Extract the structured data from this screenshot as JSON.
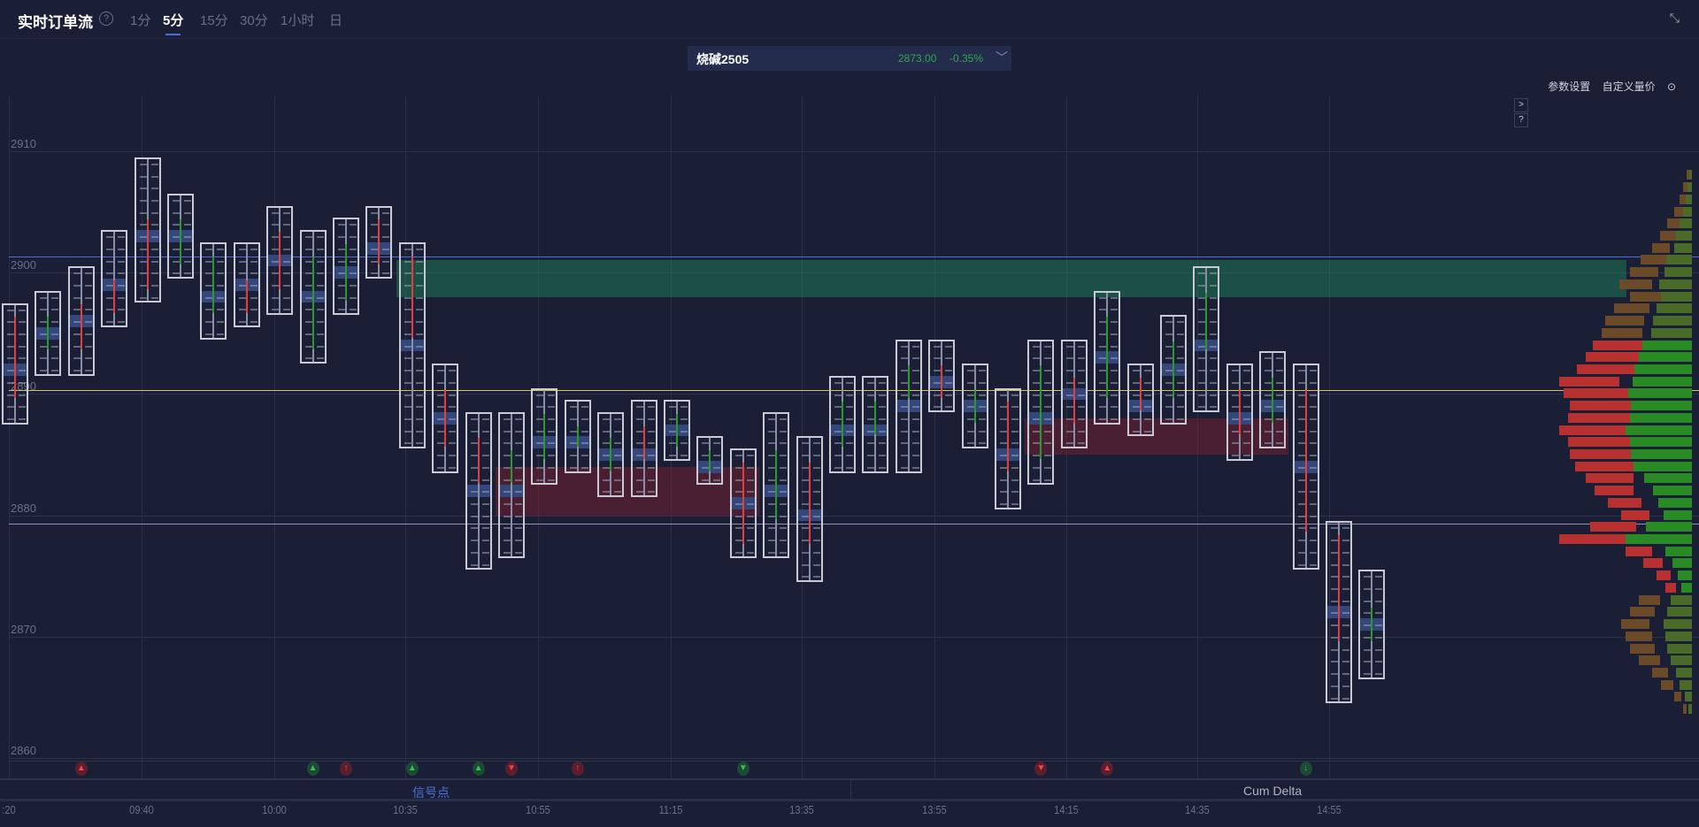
{
  "header": {
    "title": "实时订单流",
    "help_icon": "question-circle-icon",
    "timeframes": [
      "1分",
      "5分",
      "15分",
      "30分",
      "1小时",
      "日"
    ],
    "active_timeframe": "5分"
  },
  "ticker": {
    "name": "烧碱2505",
    "price": "2873.00",
    "change": "-0.35%",
    "color": "#2fa84a"
  },
  "toolbar": {
    "settings": "参数设置",
    "custom_price": "自定义量价",
    "expand": ">",
    "help": "?"
  },
  "bottom_tabs": {
    "signals": "信号点",
    "cum_delta": "Cum Delta"
  },
  "colors": {
    "up": "#2a9a2e",
    "down": "#e04040",
    "poc": "#34477a",
    "line_blue": "#4a6fd6",
    "line_yellow": "#d8c06a",
    "line_purple": "#9a8fb8"
  },
  "chart_data": {
    "type": "footprint",
    "price_ticks": [
      "2910",
      "2900",
      "2890",
      "2880",
      "2870",
      "2860"
    ],
    "ylim": [
      2857,
      2913
    ],
    "time_labels": [
      ":20",
      "09:40",
      "10:00",
      "10:35",
      "10:55",
      "11:15",
      "13:35",
      "13:55",
      "14:15",
      "14:35",
      "14:55"
    ],
    "candles": [
      {
        "h": 2897,
        "l": 2888,
        "o": 2896,
        "c": 2890
      },
      {
        "h": 2898,
        "l": 2892,
        "o": 2894,
        "c": 2896
      },
      {
        "h": 2900,
        "l": 2892,
        "o": 2897,
        "c": 2894
      },
      {
        "h": 2903,
        "l": 2896,
        "o": 2899,
        "c": 2897
      },
      {
        "h": 2909,
        "l": 2898,
        "o": 2904,
        "c": 2899
      },
      {
        "h": 2906,
        "l": 2900,
        "o": 2901,
        "c": 2904
      },
      {
        "h": 2902,
        "l": 2895,
        "o": 2897,
        "c": 2901
      },
      {
        "h": 2902,
        "l": 2896,
        "o": 2899,
        "c": 2897
      },
      {
        "h": 2905,
        "l": 2897,
        "o": 2903,
        "c": 2899
      },
      {
        "h": 2903,
        "l": 2893,
        "o": 2894,
        "c": 2901
      },
      {
        "h": 2904,
        "l": 2897,
        "o": 2898,
        "c": 2902
      },
      {
        "h": 2905,
        "l": 2900,
        "o": 2904,
        "c": 2901
      },
      {
        "h": 2902,
        "l": 2886,
        "o": 2901,
        "c": 2895
      },
      {
        "h": 2892,
        "l": 2884,
        "o": 2890,
        "c": 2886
      },
      {
        "h": 2888,
        "l": 2876,
        "o": 2886,
        "c": 2883
      },
      {
        "h": 2888,
        "l": 2877,
        "o": 2883,
        "c": 2885
      },
      {
        "h": 2890,
        "l": 2883,
        "o": 2885,
        "c": 2888
      },
      {
        "h": 2889,
        "l": 2884,
        "o": 2886,
        "c": 2887
      },
      {
        "h": 2888,
        "l": 2882,
        "o": 2884,
        "c": 2886
      },
      {
        "h": 2889,
        "l": 2882,
        "o": 2887,
        "c": 2885
      },
      {
        "h": 2889,
        "l": 2885,
        "o": 2886,
        "c": 2888
      },
      {
        "h": 2886,
        "l": 2883,
        "o": 2884,
        "c": 2885
      },
      {
        "h": 2885,
        "l": 2877,
        "o": 2884,
        "c": 2878
      },
      {
        "h": 2888,
        "l": 2877,
        "o": 2880,
        "c": 2885
      },
      {
        "h": 2886,
        "l": 2875,
        "o": 2884,
        "c": 2878
      },
      {
        "h": 2891,
        "l": 2884,
        "o": 2886,
        "c": 2889
      },
      {
        "h": 2891,
        "l": 2884,
        "o": 2887,
        "c": 2889
      },
      {
        "h": 2894,
        "l": 2884,
        "o": 2890,
        "c": 2892
      },
      {
        "h": 2894,
        "l": 2889,
        "o": 2892,
        "c": 2890
      },
      {
        "h": 2892,
        "l": 2886,
        "o": 2888,
        "c": 2890
      },
      {
        "h": 2890,
        "l": 2881,
        "o": 2889,
        "c": 2884
      },
      {
        "h": 2894,
        "l": 2883,
        "o": 2885,
        "c": 2892
      },
      {
        "h": 2894,
        "l": 2886,
        "o": 2891,
        "c": 2888
      },
      {
        "h": 2898,
        "l": 2888,
        "o": 2890,
        "c": 2896
      },
      {
        "h": 2892,
        "l": 2887,
        "o": 2891,
        "c": 2889
      },
      {
        "h": 2896,
        "l": 2888,
        "o": 2890,
        "c": 2894
      },
      {
        "h": 2900,
        "l": 2889,
        "o": 2894,
        "c": 2898
      },
      {
        "h": 2892,
        "l": 2885,
        "o": 2890,
        "c": 2887
      },
      {
        "h": 2893,
        "l": 2886,
        "o": 2888,
        "c": 2891
      },
      {
        "h": 2892,
        "l": 2876,
        "o": 2890,
        "c": 2879
      },
      {
        "h": 2879,
        "l": 2865,
        "o": 2878,
        "c": 2870
      },
      {
        "h": 2875,
        "l": 2867,
        "o": 2870,
        "c": 2872
      }
    ],
    "lines": [
      {
        "price": 2901.3,
        "color": "#4a6fd6"
      },
      {
        "price": 2890.3,
        "color": "#d8c06a"
      },
      {
        "price": 2879.3,
        "color": "#9a8fb8"
      }
    ],
    "zones": [
      {
        "from": 2898,
        "to": 2901,
        "color": "green",
        "start": 12
      },
      {
        "from": 2880,
        "to": 2884,
        "color": "red",
        "start": 15,
        "end": 22
      },
      {
        "from": 2885,
        "to": 2888,
        "color": "red",
        "start": 31,
        "end": 38
      }
    ],
    "profile": {
      "prices_from": 2908,
      "totals": [
        6,
        10,
        14,
        20,
        28,
        36,
        45,
        58,
        70,
        82,
        70,
        88,
        98,
        102,
        112,
        120,
        130,
        150,
        145,
        138,
        140,
        150,
        140,
        138,
        132,
        120,
        110,
        95,
        80,
        115,
        150,
        75,
        55,
        40,
        30,
        60,
        70,
        80,
        75,
        70,
        60,
        45,
        35,
        20,
        10
      ],
      "sell_share": [
        0.5,
        0.5,
        0.5,
        0.5,
        0.5,
        0.5,
        0.55,
        0.5,
        0.55,
        0.55,
        0.5,
        0.55,
        0.55,
        0.55,
        0.5,
        0.5,
        0.5,
        0.55,
        0.5,
        0.5,
        0.5,
        0.5,
        0.5,
        0.5,
        0.5,
        0.55,
        0.6,
        0.6,
        0.6,
        0.55,
        0.5,
        0.6,
        0.6,
        0.6,
        0.6,
        0.6,
        0.6,
        0.6,
        0.6,
        0.6,
        0.6,
        0.6,
        0.6,
        0.6,
        0.6
      ]
    },
    "signals": [
      {
        "i": 2,
        "type": "up",
        "dir": "up"
      },
      {
        "i": 9,
        "type": "down",
        "dir": "up"
      },
      {
        "i": 10,
        "type": "up",
        "dir": "arrow-up"
      },
      {
        "i": 12,
        "type": "down",
        "dir": "up"
      },
      {
        "i": 14,
        "type": "down",
        "dir": "up"
      },
      {
        "i": 15,
        "type": "up",
        "dir": "down"
      },
      {
        "i": 17,
        "type": "up",
        "dir": "arrow-up"
      },
      {
        "i": 22,
        "type": "down",
        "dir": "down"
      },
      {
        "i": 31,
        "type": "up",
        "dir": "down"
      },
      {
        "i": 33,
        "type": "up",
        "dir": "up"
      },
      {
        "i": 39,
        "type": "down",
        "dir": "arrow-down"
      }
    ]
  }
}
